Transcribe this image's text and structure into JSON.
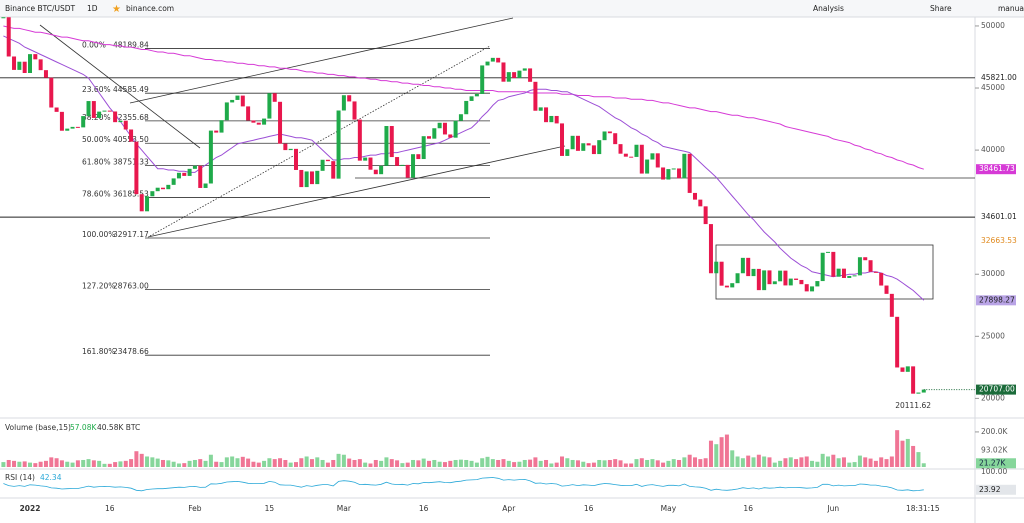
{
  "toolbar": {
    "symbol": "Binance BTC/USDT",
    "interval": "1D",
    "source": "binance.com",
    "analysis": "Analysis",
    "share": "Share",
    "user": "manual"
  },
  "chart_data": {
    "type": "candlestick",
    "categories": [
      null,
      null,
      null,
      null,
      null,
      "2022",
      null,
      null,
      null,
      null,
      null,
      null,
      null,
      null,
      null,
      null,
      null,
      null,
      null,
      null,
      "16",
      null,
      null,
      null,
      null,
      null,
      null,
      null,
      null,
      null,
      null,
      null,
      null,
      null,
      null,
      null,
      "Feb",
      null,
      null,
      null,
      null,
      null,
      null,
      null,
      null,
      null,
      null,
      null,
      null,
      null,
      "15",
      null,
      null,
      null,
      null,
      null,
      null,
      null,
      null,
      null,
      null,
      null,
      null,
      null,
      "Mar",
      null,
      null,
      null,
      null,
      null,
      null,
      null,
      null,
      null,
      null,
      null,
      null,
      null,
      null,
      "16",
      null,
      null,
      null,
      null,
      null,
      null,
      null,
      null,
      null,
      null,
      null,
      null,
      null,
      null,
      null,
      "Apr",
      null,
      null,
      null,
      null,
      null,
      null,
      null,
      null,
      null,
      null,
      null,
      null,
      null,
      null,
      "16",
      null,
      null,
      null,
      null,
      null,
      null,
      null,
      null,
      null,
      null,
      null,
      null,
      null,
      null,
      "May",
      null,
      null,
      null,
      null,
      null,
      null,
      null,
      null,
      null,
      null,
      null,
      null,
      null,
      null,
      "16",
      null,
      null,
      null,
      null,
      null,
      null,
      null,
      null,
      null,
      null,
      null,
      null,
      null,
      null,
      null,
      "Jun",
      null,
      null,
      null,
      null,
      null,
      null,
      null,
      null,
      null,
      null,
      null,
      null,
      null,
      null,
      null,
      null,
      null
    ],
    "values": [
      50700,
      47540,
      46460,
      47120,
      46210,
      47730,
      47310,
      46440,
      45830,
      43430,
      43080,
      41560,
      41730,
      41870,
      41830,
      42740,
      43950,
      42590,
      43100,
      43180,
      43110,
      42250,
      42370,
      41660,
      40680,
      36450,
      35070,
      36280,
      36690,
      36970,
      36850,
      37200,
      37720,
      38170,
      37920,
      38490,
      38740,
      36950,
      37310,
      41570,
      41410,
      42410,
      43840,
      44040,
      44390,
      43520,
      42390,
      42210,
      42050,
      42540,
      44580,
      43890,
      40520,
      40000,
      40100,
      38400,
      37020,
      38280,
      37260,
      38330,
      39220,
      39110,
      37700,
      43190,
      44420,
      43920,
      42460,
      39150,
      39400,
      38420,
      38060,
      38740,
      41940,
      39440,
      38730,
      38810,
      37780,
      39670,
      39280,
      41120,
      40920,
      41760,
      42200,
      41260,
      41000,
      42360,
      42890,
      43960,
      44330,
      44520,
      46820,
      47130,
      47430,
      47060,
      45510,
      46280,
      45810,
      46400,
      46580,
      45500,
      43170,
      43440,
      42250,
      42750,
      42150,
      39530,
      40070,
      41150,
      39940,
      40550,
      40380,
      39680,
      40800,
      41500,
      41360,
      40480,
      39710,
      39470,
      39450,
      40430,
      38110,
      39240,
      39740,
      38600,
      37630,
      38470,
      38520,
      37730,
      39700,
      36550,
      36010,
      35470,
      34040,
      30080,
      31010,
      29080,
      28940,
      29280,
      30080,
      31320,
      29850,
      30430,
      28720,
      30310,
      29200,
      29430,
      30290,
      29100,
      29650,
      29540,
      29200,
      28620,
      29020,
      29450,
      31730,
      31800,
      29800,
      30450,
      29700,
      29860,
      29910,
      31370,
      31130,
      30200,
      30110,
      29090,
      28420,
      26570,
      22490,
      22140,
      22580,
      20380,
      20470,
      20707
    ],
    "up_color": "#1faa4a",
    "down_color": "#e8174d",
    "ylim": [
      18420,
      50560
    ],
    "yticks": [
      20000,
      25000,
      30000,
      40000,
      45000,
      50000
    ],
    "ma_fast": {
      "color": "#9c4fd6",
      "label_bg": "#b9a4e6",
      "last_label": "27898.27",
      "values": [
        49200,
        49000,
        48800,
        48600,
        48300,
        48100,
        47900,
        47700,
        47500,
        47300,
        47100,
        46900,
        46700,
        46500,
        46300,
        46100,
        45800,
        45200,
        44600,
        44000,
        43400,
        42900,
        42300,
        41700,
        41100,
        40500,
        40000,
        39500,
        39000,
        38500,
        38500,
        38400,
        38400,
        38300,
        38300,
        38200,
        38200,
        38500,
        38800,
        39100,
        39400,
        39600,
        39900,
        40200,
        40500,
        40600,
        40700,
        40800,
        40900,
        41000,
        41100,
        41200,
        41300,
        41200,
        41100,
        41000,
        41000,
        40900,
        40800,
        40400,
        40000,
        39600,
        39200,
        39200,
        39300,
        39300,
        39400,
        39400,
        39500,
        39600,
        39600,
        39700,
        39700,
        39800,
        39800,
        39900,
        40000,
        40100,
        40200,
        40300,
        40400,
        40500,
        40600,
        40800,
        41000,
        41200,
        41400,
        41600,
        41800,
        42200,
        42700,
        43100,
        43600,
        44000,
        44100,
        44300,
        44400,
        44500,
        44600,
        44800,
        44900,
        44900,
        44900,
        44800,
        44800,
        44700,
        44700,
        44500,
        44300,
        44100,
        43900,
        43700,
        43500,
        43200,
        42900,
        42600,
        42400,
        42100,
        41800,
        41600,
        41300,
        41100,
        40800,
        40600,
        40300,
        40200,
        40100,
        40000,
        39900,
        39800,
        39400,
        39000,
        38600,
        38200,
        37800,
        37300,
        36800,
        36300,
        35800,
        35300,
        34800,
        34400,
        33900,
        33400,
        33000,
        32600,
        32100,
        31700,
        31300,
        31000,
        30700,
        30500,
        30200,
        30100,
        30000,
        29900,
        29800,
        29900,
        29900,
        30000,
        30000,
        30100,
        30100,
        30200,
        30200,
        30100,
        29900,
        29800,
        29600,
        29300,
        29000,
        28700,
        28300,
        27898.27
      ]
    },
    "ma_slow": {
      "color": "#d63ad6",
      "label_bg": "#d63ad6",
      "last_label": "38461.73",
      "values": [
        50000,
        49900,
        49800,
        49800,
        49700,
        49600,
        49500,
        49500,
        49400,
        49300,
        49200,
        49100,
        49100,
        49000,
        48900,
        48800,
        48800,
        48700,
        48600,
        48500,
        48500,
        48400,
        48400,
        48300,
        48300,
        48200,
        48100,
        48100,
        48000,
        47900,
        47900,
        47800,
        47800,
        47700,
        47600,
        47600,
        47500,
        47400,
        47300,
        47300,
        47200,
        47200,
        47100,
        47100,
        47000,
        47000,
        46900,
        46900,
        46800,
        46800,
        46700,
        46700,
        46600,
        46600,
        46500,
        46500,
        46400,
        46300,
        46300,
        46200,
        46200,
        46100,
        46100,
        46000,
        46000,
        45900,
        45900,
        45800,
        45800,
        45700,
        45700,
        45600,
        45600,
        45500,
        45500,
        45400,
        45400,
        45300,
        45300,
        45200,
        45200,
        45100,
        45100,
        45000,
        45000,
        44900,
        44900,
        44800,
        44800,
        44800,
        44800,
        44800,
        44800,
        44700,
        44700,
        44700,
        44700,
        44700,
        44700,
        44600,
        44600,
        44600,
        44600,
        44600,
        44600,
        44500,
        44500,
        44500,
        44400,
        44400,
        44400,
        44300,
        44300,
        44300,
        44300,
        44200,
        44200,
        44200,
        44100,
        44100,
        44100,
        44000,
        44000,
        43900,
        43800,
        43800,
        43700,
        43600,
        43500,
        43400,
        43400,
        43300,
        43200,
        43100,
        43100,
        43000,
        42900,
        42800,
        42800,
        42700,
        42600,
        42600,
        42500,
        42400,
        42300,
        42200,
        42100,
        41900,
        41800,
        41700,
        41600,
        41500,
        41400,
        41300,
        41200,
        41100,
        40900,
        40800,
        40700,
        40600,
        40400,
        40300,
        40100,
        40000,
        39800,
        39700,
        39500,
        39400,
        39200,
        39100,
        38900,
        38800,
        38600,
        38461.73
      ]
    },
    "hlines": [
      {
        "value": 45821,
        "label": "45821.00"
      },
      {
        "value": 34601.01,
        "label": "34601.01"
      }
    ],
    "marker": {
      "value": 32663.53,
      "label": "32663.53",
      "color": "#e08a1e"
    },
    "last_price": {
      "label": "20707.00",
      "color": "#1b6b3a"
    },
    "low": {
      "value": 20111.62,
      "label": "20111.62"
    },
    "fib": [
      {
        "ratio": "0.00%",
        "value": 48189.84,
        "label": "48189.84"
      },
      {
        "ratio": "23.60%",
        "value": 44585.49,
        "label": "44585.49"
      },
      {
        "ratio": "38.20%",
        "value": 42355.68,
        "label": "42355.68"
      },
      {
        "ratio": "50.00%",
        "value": 40553.5,
        "label": "40553.50"
      },
      {
        "ratio": "61.80%",
        "value": 38751.33,
        "label": "38751.33"
      },
      {
        "ratio": "78.60%",
        "value": 36185.53,
        "label": "36185.53"
      },
      {
        "ratio": "100.00%",
        "value": 32917.17,
        "label": "32917.17"
      },
      {
        "ratio": "127.20%",
        "value": 28763,
        "label": "28763.00"
      },
      {
        "ratio": "161.80%",
        "value": 23478.66,
        "label": "23478.66"
      }
    ],
    "volume": {
      "title": "Volume (base,15)",
      "stat1": "57.08K",
      "stat2": "40.58K BTC",
      "ylim": [
        0,
        268
      ],
      "yticks": [
        {
          "value": 200,
          "label": "200.0K"
        }
      ],
      "ma_marker": {
        "value": 93.02,
        "label": "93.02K"
      },
      "last_label": "21.27K",
      "up_color": "#86d69b",
      "down_color": "#f07595",
      "values": [
        28,
        40,
        35,
        30,
        32,
        25,
        22,
        30,
        35,
        55,
        50,
        38,
        30,
        25,
        38,
        40,
        45,
        38,
        35,
        18,
        18,
        28,
        32,
        35,
        45,
        90,
        75,
        60,
        55,
        48,
        40,
        38,
        30,
        20,
        22,
        35,
        40,
        45,
        35,
        70,
        30,
        28,
        55,
        60,
        50,
        58,
        48,
        30,
        25,
        35,
        50,
        45,
        50,
        40,
        25,
        28,
        50,
        60,
        45,
        55,
        40,
        25,
        40,
        75,
        70,
        48,
        40,
        45,
        25,
        20,
        40,
        35,
        55,
        45,
        38,
        22,
        25,
        40,
        38,
        48,
        35,
        40,
        30,
        28,
        35,
        40,
        42,
        40,
        35,
        25,
        50,
        58,
        45,
        40,
        45,
        35,
        28,
        30,
        40,
        42,
        55,
        35,
        40,
        20,
        25,
        60,
        50,
        40,
        38,
        30,
        22,
        25,
        40,
        38,
        40,
        45,
        38,
        20,
        20,
        45,
        50,
        40,
        45,
        38,
        25,
        35,
        45,
        40,
        55,
        70,
        55,
        45,
        50,
        150,
        130,
        170,
        185,
        95,
        60,
        50,
        65,
        55,
        70,
        60,
        55,
        25,
        35,
        50,
        55,
        45,
        55,
        60,
        35,
        30,
        75,
        60,
        70,
        50,
        55,
        25,
        28,
        65,
        55,
        48,
        35,
        55,
        45,
        60,
        210,
        150,
        160,
        120,
        85,
        21.27
      ]
    },
    "rsi": {
      "title": "RSI (14)",
      "stat": "42.34",
      "color": "#29a8d8",
      "ylim": [
        0,
        100
      ],
      "yticks": [
        {
          "value": 100,
          "label": "100.00"
        }
      ],
      "last_label": "23.92",
      "values": [
        48,
        40,
        37,
        40,
        37,
        43,
        42,
        39,
        37,
        31,
        30,
        27,
        28,
        29,
        29,
        33,
        38,
        34,
        36,
        37,
        36,
        34,
        35,
        33,
        30,
        22,
        20,
        25,
        27,
        28,
        28,
        30,
        32,
        34,
        33,
        36,
        37,
        33,
        34,
        47,
        46,
        49,
        54,
        55,
        56,
        53,
        49,
        48,
        48,
        49,
        56,
        53,
        43,
        42,
        42,
        38,
        34,
        40,
        37,
        41,
        44,
        44,
        39,
        56,
        59,
        57,
        53,
        44,
        45,
        43,
        42,
        45,
        53,
        46,
        44,
        45,
        42,
        48,
        47,
        52,
        51,
        53,
        55,
        52,
        51,
        55,
        57,
        61,
        62,
        63,
        69,
        70,
        71,
        68,
        61,
        63,
        61,
        63,
        64,
        58,
        49,
        50,
        46,
        48,
        46,
        38,
        40,
        44,
        40,
        43,
        42,
        40,
        45,
        48,
        47,
        44,
        41,
        40,
        40,
        45,
        37,
        42,
        44,
        40,
        37,
        41,
        41,
        39,
        46,
        37,
        35,
        34,
        30,
        22,
        26,
        23,
        22,
        24,
        27,
        32,
        29,
        31,
        27,
        32,
        30,
        31,
        34,
        31,
        33,
        33,
        32,
        30,
        31,
        33,
        45,
        45,
        39,
        42,
        39,
        40,
        40,
        46,
        45,
        42,
        42,
        38,
        36,
        31,
        23,
        22,
        24,
        20,
        21,
        23.92
      ]
    },
    "time": "18:31:15"
  }
}
